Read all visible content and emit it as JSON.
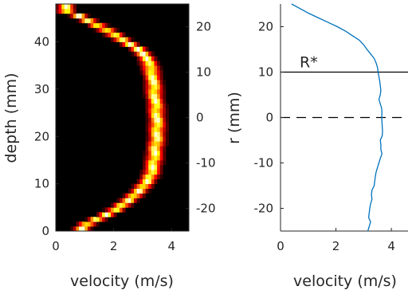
{
  "chart_data": [
    {
      "type": "heatmap",
      "xlabel": "velocity (m/s)",
      "ylabel": "depth (mm)",
      "xlim": [
        0,
        4.6
      ],
      "ylim": [
        0,
        48
      ],
      "x_ticks": [
        0,
        2,
        4
      ],
      "y_ticks": [
        0,
        10,
        20,
        30,
        40
      ],
      "right_axis": {
        "label": "",
        "ylim": [
          -25,
          25
        ],
        "ticks": [
          20,
          10,
          0,
          -10,
          -20
        ]
      },
      "colormap": "hot",
      "background": "#000000",
      "ridge": {
        "name": "",
        "depth": [
          1,
          3,
          5,
          8,
          10,
          12,
          15,
          18,
          20,
          24,
          27,
          30,
          33,
          35,
          37,
          38.5,
          40,
          42,
          44,
          45.5,
          46.5
        ],
        "velocity": [
          0.9,
          1.6,
          2.2,
          2.8,
          3.1,
          3.3,
          3.4,
          3.45,
          3.5,
          3.5,
          3.45,
          3.4,
          3.35,
          3.25,
          3.1,
          2.85,
          2.4,
          1.9,
          1.3,
          0.8,
          0.35
        ]
      }
    },
    {
      "type": "line",
      "xlabel": "velocity (m/s)",
      "ylabel": "r (mm)",
      "xlim": [
        0,
        4.6
      ],
      "ylim": [
        -25,
        25
      ],
      "x_ticks": [
        0,
        2,
        4
      ],
      "y_ticks": [
        20,
        10,
        0,
        -10,
        -20
      ],
      "series": [
        {
          "name": "",
          "color": "#0072bd",
          "r": [
            25,
            24,
            23,
            22,
            21,
            20,
            19,
            18,
            17,
            16,
            15,
            14,
            13,
            12,
            11,
            10,
            9,
            8,
            7,
            6,
            5,
            4,
            3,
            2,
            1,
            0,
            -1,
            -2,
            -3,
            -4,
            -5,
            -6,
            -7,
            -8,
            -9,
            -10,
            -11,
            -12,
            -13,
            -14,
            -15,
            -16,
            -17,
            -18,
            -19,
            -20,
            -21,
            -22,
            -23,
            -24,
            -25
          ],
          "velocity": [
            0.4,
            0.7,
            1.0,
            1.35,
            1.7,
            2.05,
            2.35,
            2.6,
            2.85,
            3.0,
            3.12,
            3.25,
            3.38,
            3.45,
            3.5,
            3.52,
            3.55,
            3.58,
            3.6,
            3.62,
            3.6,
            3.55,
            3.6,
            3.65,
            3.66,
            3.65,
            3.66,
            3.67,
            3.68,
            3.67,
            3.6,
            3.62,
            3.62,
            3.66,
            3.6,
            3.55,
            3.5,
            3.45,
            3.42,
            3.4,
            3.38,
            3.3,
            3.28,
            3.3,
            3.25,
            3.22,
            3.2,
            3.18,
            3.25,
            3.2,
            3.15
          ]
        }
      ],
      "hlines": [
        {
          "y": 10,
          "style": "solid",
          "label": "R*"
        },
        {
          "y": 0,
          "style": "dashed",
          "label": ""
        }
      ]
    }
  ]
}
